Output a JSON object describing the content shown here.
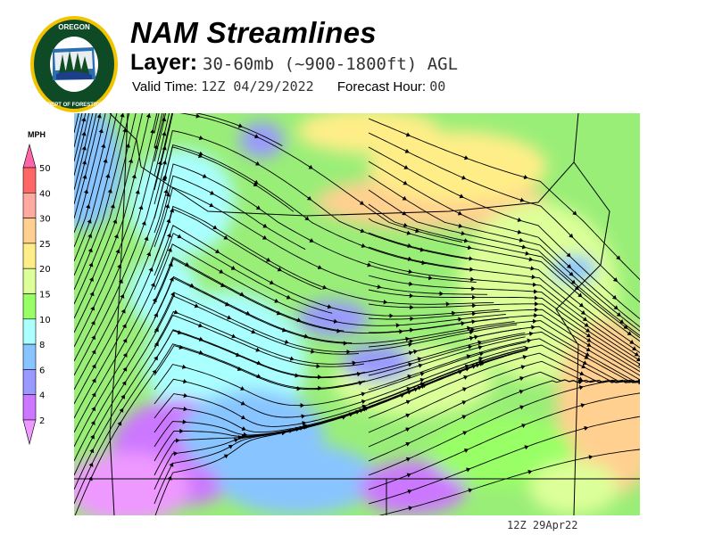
{
  "header": {
    "logo_text": "OREGON DEPARTMENT OF FORESTRY",
    "title": "NAM Streamlines",
    "layer_label": "Layer:",
    "layer_value": "30-60mb (~900-1800ft) AGL",
    "valid_time_label": "Valid Time:",
    "valid_time_value": "12Z 04/29/2022",
    "forecast_hour_label": "Forecast Hour:",
    "forecast_hour_value": "00"
  },
  "colorbar": {
    "unit": "MPH",
    "ticks": [
      "50",
      "40",
      "30",
      "25",
      "20",
      "15",
      "10",
      "8",
      "6",
      "4",
      "2"
    ],
    "colors": [
      "#ff66aa",
      "#ff6666",
      "#ffaaa0",
      "#ffd090",
      "#ffee88",
      "#ddff99",
      "#99ff66",
      "#aaffff",
      "#88c4ff",
      "#9999ff",
      "#cc77ff",
      "#ee99ff"
    ]
  },
  "map": {
    "field": "wind speed and streamlines",
    "region": "Oregon"
  },
  "footer": {
    "timestamp": "12Z 29Apr22"
  }
}
